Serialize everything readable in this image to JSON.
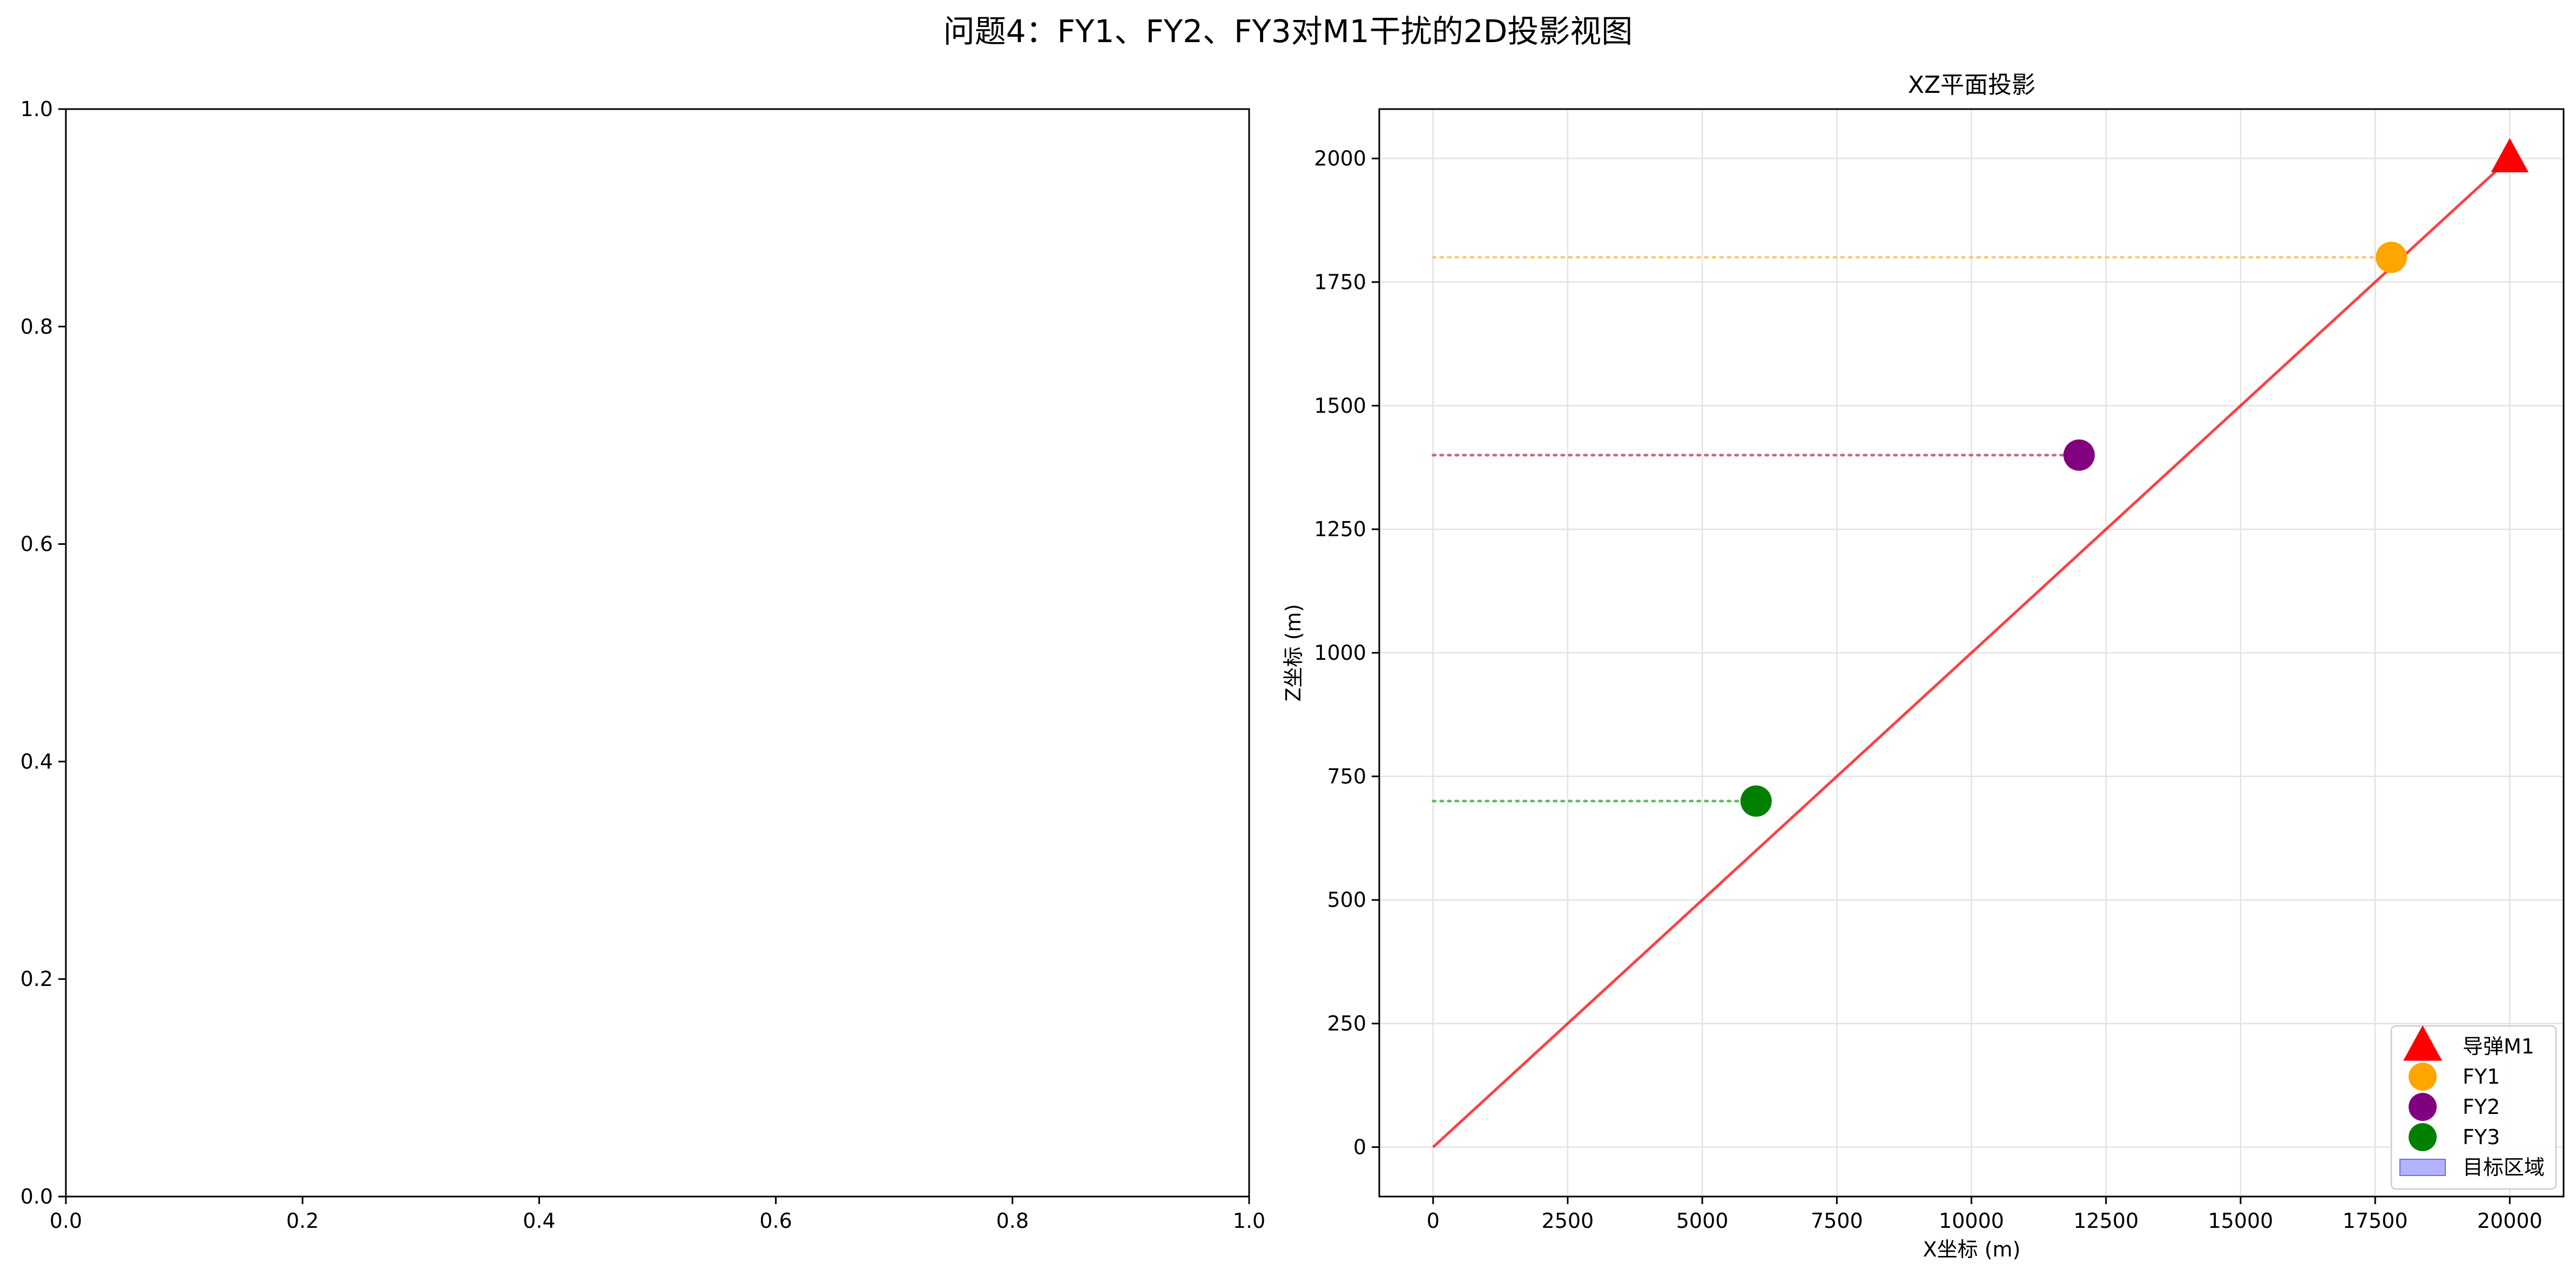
{
  "figure": {
    "suptitle": "问题4：FY1、FY2、FY3对M1干扰的2D投影视图"
  },
  "chart_data": [
    {
      "type": "scatter",
      "title": "",
      "xlabel": "",
      "ylabel": "",
      "xlim": [
        0,
        1
      ],
      "ylim": [
        0,
        1
      ],
      "xticks": [
        "0.0",
        "0.2",
        "0.4",
        "0.6",
        "0.8",
        "1.0"
      ],
      "yticks": [
        "0.0",
        "0.2",
        "0.4",
        "0.6",
        "0.8",
        "1.0"
      ],
      "grid": false,
      "series": []
    },
    {
      "type": "scatter",
      "title": "XZ平面投影",
      "xlabel": "X坐标 (m)",
      "ylabel": "Z坐标 (m)",
      "xlim": [
        -1000,
        21000
      ],
      "ylim": [
        -100,
        2100
      ],
      "xticks": [
        "0",
        "2500",
        "5000",
        "7500",
        "10000",
        "12500",
        "15000",
        "17500",
        "20000"
      ],
      "yticks": [
        "0",
        "250",
        "500",
        "750",
        "1000",
        "1250",
        "1500",
        "1750",
        "2000"
      ],
      "grid": true,
      "legend_position": "lower-right",
      "lines": [
        {
          "kind": "missile-trajectory",
          "color": "#ff0000",
          "style": "solid",
          "points": [
            [
              0,
              0
            ],
            [
              20000,
              2000
            ]
          ]
        },
        {
          "kind": "fy1-horizontal",
          "color": "#f5c56a",
          "style": "dotted",
          "points": [
            [
              0,
              1800
            ],
            [
              17800,
              1800
            ]
          ]
        },
        {
          "kind": "fy2-horizontal",
          "color": "#c04a8a",
          "style": "dotted",
          "points": [
            [
              0,
              1400
            ],
            [
              12000,
              1400
            ]
          ]
        },
        {
          "kind": "fy3-horizontal",
          "color": "#4caf50",
          "style": "dotted",
          "points": [
            [
              0,
              700
            ],
            [
              6000,
              700
            ]
          ]
        }
      ],
      "series": [
        {
          "name": "导弹M1",
          "marker": "triangle",
          "color": "#ff0000",
          "x": [
            20000
          ],
          "y": [
            2000
          ]
        },
        {
          "name": "FY1",
          "marker": "circle",
          "color": "#ffa500",
          "x": [
            17800
          ],
          "y": [
            1800
          ]
        },
        {
          "name": "FY2",
          "marker": "circle",
          "color": "#800080",
          "x": [
            12000
          ],
          "y": [
            1400
          ]
        },
        {
          "name": "FY3",
          "marker": "circle",
          "color": "#008000",
          "x": [
            6000
          ],
          "y": [
            700
          ]
        }
      ],
      "legend": [
        {
          "label": "导弹M1",
          "marker": "triangle",
          "color": "#ff0000"
        },
        {
          "label": "FY1",
          "marker": "circle",
          "color": "#ffa500"
        },
        {
          "label": "FY2",
          "marker": "circle",
          "color": "#800080"
        },
        {
          "label": "FY3",
          "marker": "circle",
          "color": "#008000"
        },
        {
          "label": "目标区域",
          "marker": "patch",
          "color": "#b3b3ff"
        }
      ]
    }
  ]
}
